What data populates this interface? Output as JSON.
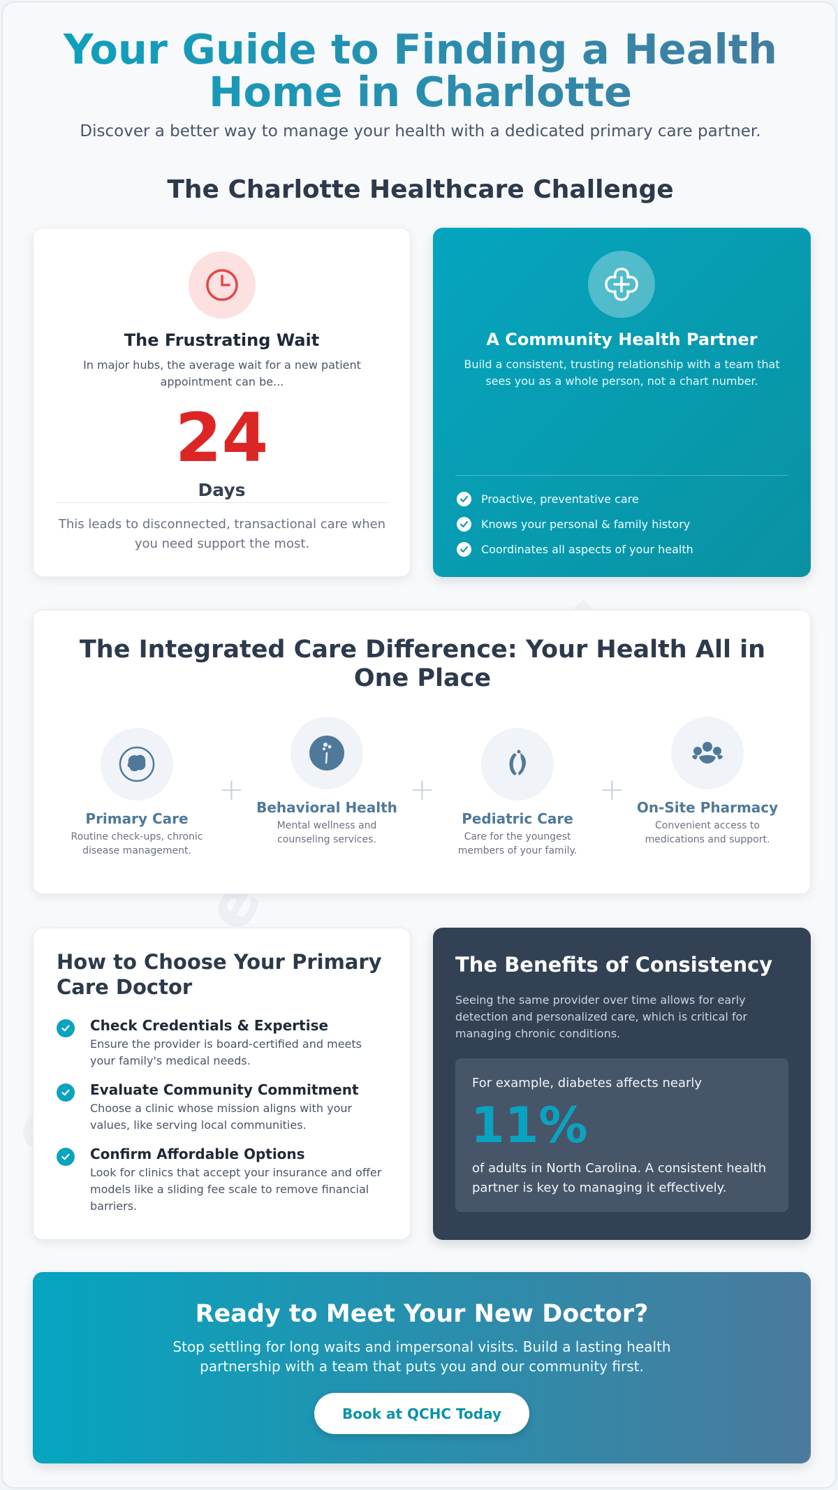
{
  "hero": {
    "title": "Your Guide to Finding a Health Home in Charlotte",
    "subtitle": "Discover a better way to manage your health with a dedicated primary care partner."
  },
  "challenge": {
    "title": "The Charlotte Healthcare Challenge",
    "wait_card": {
      "icon": "clock-icon",
      "title": "The Frustrating Wait",
      "text": "In major hubs, the average wait for a new patient appointment can be...",
      "number": "24",
      "unit": "Days",
      "footer": "This leads to disconnected, transactional care when you need support the most."
    },
    "partner_card": {
      "icon": "medical-cross-icon",
      "title": "A Community Health Partner",
      "text": "Build a consistent, trusting relationship with a team that sees you as a whole person, not a chart number.",
      "bullets": [
        "Proactive, preventative care",
        "Knows your personal & family history",
        "Coordinates all aspects of your health"
      ]
    }
  },
  "integrated": {
    "title": "The Integrated Care Difference: Your Health All in One Place",
    "services": [
      {
        "icon": "stethoscope-icon",
        "title": "Primary Care",
        "text": "Routine check-ups, chronic disease management."
      },
      {
        "icon": "brain-icon",
        "title": "Behavioral Health",
        "text": "Mental wellness and counseling services."
      },
      {
        "icon": "child-icon",
        "title": "Pediatric Care",
        "text": "Care for the youngest members of your family."
      },
      {
        "icon": "pharmacy-icon",
        "title": "On-Site Pharmacy",
        "text": "Convenient access to medications and support."
      }
    ],
    "plus_symbol": "+"
  },
  "choose": {
    "title": "How to Choose Your Primary Care Doctor",
    "tips": [
      {
        "title": "Check Credentials & Expertise",
        "text": "Ensure the provider is board-certified and meets your family's medical needs."
      },
      {
        "title": "Evaluate Community Commitment",
        "text": "Choose a clinic whose mission aligns with your values, like serving local communities."
      },
      {
        "title": "Confirm Affordable Options",
        "text": "Look for clinics that accept your insurance and offer models like a sliding fee scale to remove financial barriers."
      }
    ]
  },
  "benefits": {
    "title": "The Benefits of Consistency",
    "text": "Seeing the same provider over time allows for early detection and personalized care, which is critical for managing chronic conditions.",
    "stat_lead": "For example, diabetes affects nearly",
    "stat_value": "11%",
    "stat_footer": "of adults in North Carolina. A consistent health partner is key to managing it effectively."
  },
  "cta": {
    "title": "Ready to Meet Your New Doctor?",
    "text": "Stop settling for long waits and impersonal visits. Build a lasting health partnership with a team that puts you and our community first.",
    "button_label": "Book at QCHC Today"
  },
  "colors": {
    "accent_teal": "#0aa3bf",
    "slate_blue": "#4f7999",
    "alert_red": "#dc2626",
    "dark_panel": "#334155"
  }
}
